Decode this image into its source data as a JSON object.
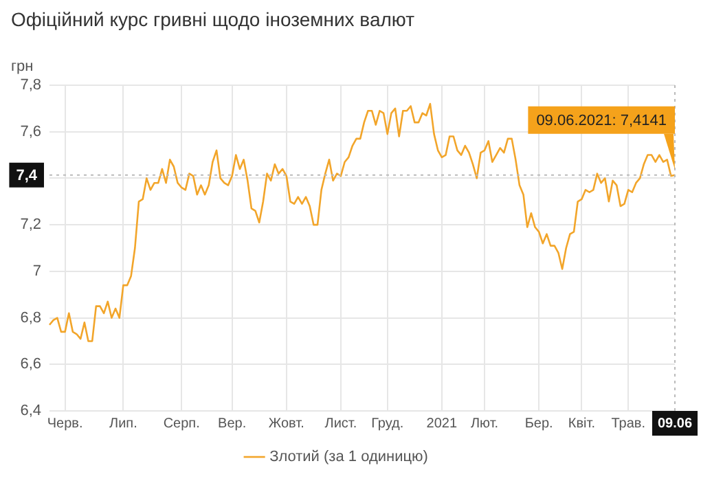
{
  "chart_data": {
    "type": "line",
    "title": "Офіційний курс гривні щодо іноземних валют",
    "ylabel": "грн",
    "categories": [
      null,
      null,
      null,
      null,
      "Черв.",
      null,
      null,
      null,
      null,
      null,
      null,
      null,
      null,
      null,
      null,
      null,
      null,
      null,
      null,
      "Лип.",
      null,
      null,
      null,
      null,
      null,
      null,
      null,
      null,
      null,
      null,
      null,
      null,
      null,
      null,
      "Серп.",
      null,
      null,
      null,
      null,
      null,
      null,
      null,
      null,
      null,
      null,
      null,
      null,
      "Вер.",
      null,
      null,
      null,
      null,
      null,
      null,
      null,
      null,
      null,
      null,
      null,
      null,
      null,
      "Жовт.",
      null,
      null,
      null,
      null,
      null,
      null,
      null,
      null,
      null,
      null,
      null,
      null,
      null,
      "Лист.",
      null,
      null,
      null,
      null,
      null,
      null,
      null,
      null,
      null,
      null,
      null,
      "Груд.",
      null,
      null,
      null,
      null,
      null,
      null,
      null,
      null,
      null,
      null,
      null,
      null,
      null,
      "2021",
      null,
      null,
      null,
      null,
      null,
      null,
      null,
      null,
      null,
      null,
      "Лют.",
      null,
      null,
      null,
      null,
      null,
      null,
      null,
      null,
      null,
      null,
      null,
      null,
      null,
      "Бер.",
      null,
      null,
      null,
      null,
      null,
      null,
      null,
      null,
      null,
      null,
      "Квіт.",
      null,
      null,
      null,
      null,
      null,
      null,
      null,
      null,
      null,
      null,
      null,
      "Трав.",
      null,
      null,
      null,
      null,
      null,
      null,
      null,
      null,
      null,
      null,
      null,
      "09.06"
    ],
    "ylim": [
      6.4,
      7.8
    ],
    "yticks": [
      {
        "value": 6.4,
        "label": "6,4"
      },
      {
        "value": 6.6,
        "label": "6,6"
      },
      {
        "value": 6.8,
        "label": "6,8"
      },
      7,
      {
        "value": 7.2,
        "label": "7,2"
      },
      {
        "value": 7.4,
        "label": null
      },
      {
        "value": 7.6,
        "label": "7,6"
      },
      {
        "value": 7.8,
        "label": "7,8"
      }
    ],
    "grid": true,
    "legend": "bottom",
    "marker": "none",
    "line_style": "solid",
    "ref_lines": [
      {
        "axis": "y",
        "value": 7.4141,
        "label": "7,4",
        "color": "#bbbbbb",
        "line_style": "dotted"
      },
      {
        "axis": "x",
        "value": "09.06",
        "color": "#bbbbbb",
        "line_style": "dotted"
      }
    ],
    "annotations": [
      {
        "text": "09.06.2021: 7,4141",
        "x": "09.06",
        "y": 7.4141
      }
    ],
    "series": [
      {
        "name": "Злотий (за 1 одиницю)",
        "color": "#f2a52a",
        "values": [
          6.77,
          6.79,
          6.8,
          6.74,
          6.74,
          6.82,
          6.74,
          6.73,
          6.71,
          6.78,
          6.7,
          6.7,
          6.85,
          6.85,
          6.82,
          6.87,
          6.8,
          6.84,
          6.8,
          6.94,
          6.94,
          6.98,
          7.1,
          7.3,
          7.31,
          7.4,
          7.35,
          7.38,
          7.38,
          7.44,
          7.38,
          7.48,
          7.45,
          7.38,
          7.36,
          7.35,
          7.42,
          7.41,
          7.33,
          7.37,
          7.33,
          7.37,
          7.47,
          7.52,
          7.4,
          7.38,
          7.37,
          7.41,
          7.5,
          7.44,
          7.48,
          7.39,
          7.27,
          7.26,
          7.21,
          7.3,
          7.42,
          7.39,
          7.46,
          7.42,
          7.44,
          7.41,
          7.3,
          7.29,
          7.32,
          7.29,
          7.32,
          7.28,
          7.2,
          7.2,
          7.35,
          7.42,
          7.48,
          7.39,
          7.42,
          7.41,
          7.47,
          7.49,
          7.54,
          7.57,
          7.57,
          7.64,
          7.69,
          7.69,
          7.63,
          7.69,
          7.68,
          7.59,
          7.68,
          7.7,
          7.58,
          7.69,
          7.69,
          7.71,
          7.64,
          7.64,
          7.68,
          7.67,
          7.72,
          7.59,
          7.52,
          7.49,
          7.5,
          7.58,
          7.58,
          7.52,
          7.5,
          7.54,
          7.51,
          7.46,
          7.4,
          7.51,
          7.52,
          7.56,
          7.47,
          7.5,
          7.53,
          7.51,
          7.57,
          7.57,
          7.48,
          7.37,
          7.33,
          7.19,
          7.25,
          7.19,
          7.17,
          7.12,
          7.16,
          7.11,
          7.11,
          7.08,
          7.01,
          7.1,
          7.16,
          7.17,
          7.3,
          7.31,
          7.35,
          7.34,
          7.35,
          7.42,
          7.38,
          7.4,
          7.3,
          7.39,
          7.37,
          7.28,
          7.29,
          7.35,
          7.34,
          7.38,
          7.4,
          7.46,
          7.5,
          7.5,
          7.47,
          7.5,
          7.47,
          7.48,
          7.41,
          7.4141
        ]
      }
    ]
  }
}
